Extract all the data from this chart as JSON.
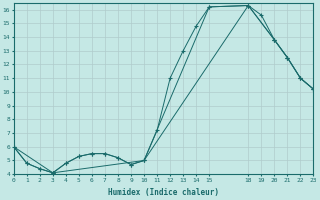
{
  "xlabel": "Humidex (Indice chaleur)",
  "background_color": "#c5e8e5",
  "plot_bg_color": "#c5e8e5",
  "grid_color": "#b0cccc",
  "line_color": "#1a6b6b",
  "line1": {
    "x": [
      0,
      1,
      2,
      3,
      4,
      5,
      6,
      7,
      8,
      9,
      10,
      11,
      12,
      13,
      14,
      15,
      18,
      19,
      20,
      21,
      22,
      23
    ],
    "y": [
      6.0,
      4.8,
      4.4,
      4.1,
      4.8,
      5.3,
      5.5,
      5.5,
      5.2,
      4.7,
      5.0,
      7.2,
      11.0,
      13.0,
      14.8,
      16.2,
      16.3,
      15.6,
      13.8,
      12.5,
      11.0,
      10.2
    ]
  },
  "line2": {
    "x": [
      0,
      1,
      2,
      3,
      4,
      5,
      6,
      7,
      8,
      9,
      10,
      18,
      20,
      21,
      22,
      23
    ],
    "y": [
      6.0,
      4.8,
      4.4,
      4.1,
      4.8,
      5.3,
      5.5,
      5.5,
      5.2,
      4.7,
      5.0,
      16.3,
      13.8,
      12.5,
      11.0,
      10.2
    ]
  },
  "line3": {
    "x": [
      0,
      3,
      10,
      15,
      18,
      20,
      21,
      22,
      23
    ],
    "y": [
      6.0,
      4.1,
      5.0,
      16.2,
      16.3,
      13.8,
      12.5,
      11.0,
      10.2
    ]
  },
  "xlim": [
    0,
    23
  ],
  "ylim": [
    4,
    16.5
  ],
  "yticks": [
    4,
    5,
    6,
    7,
    8,
    9,
    10,
    11,
    12,
    13,
    14,
    15,
    16
  ],
  "xticks": [
    0,
    1,
    2,
    3,
    4,
    5,
    6,
    7,
    8,
    9,
    10,
    11,
    12,
    13,
    14,
    15,
    18,
    19,
    20,
    21,
    22,
    23
  ],
  "xtick_labels": [
    "0",
    "1",
    "2",
    "3",
    "4",
    "5",
    "6",
    "7",
    "8",
    "9",
    "10",
    "11",
    "12",
    "13",
    "14",
    "15",
    "18",
    "19",
    "20",
    "21",
    "22",
    "23"
  ]
}
